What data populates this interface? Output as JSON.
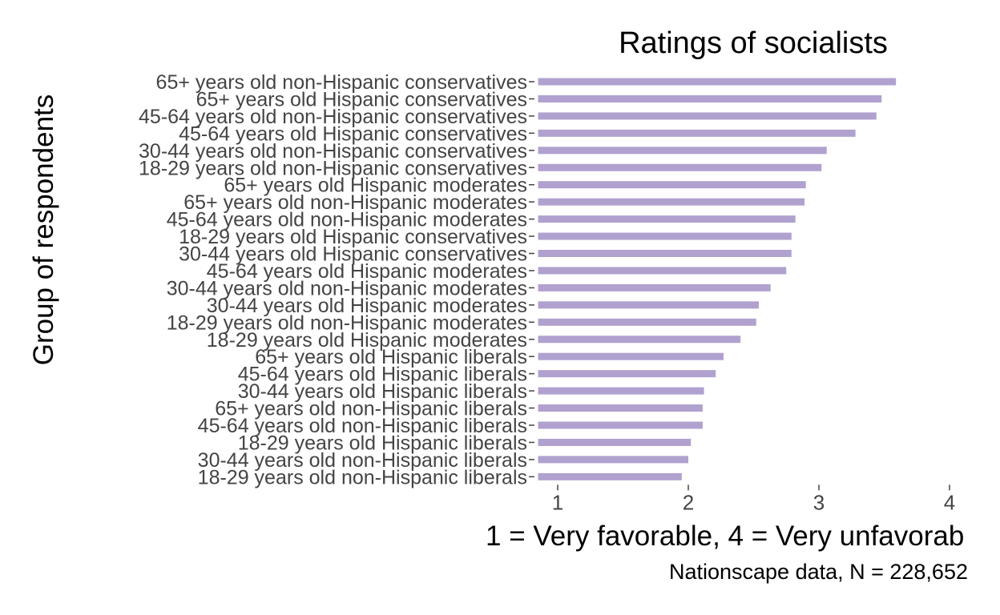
{
  "chart_data": {
    "type": "bar",
    "orientation": "horizontal",
    "title": "Ratings of socialists",
    "xlabel": "1 = Very favorable, 4 = Very unfavorab",
    "ylabel": "Group of respondents",
    "caption": "Nationscape data, N = 228,652",
    "xlim": [
      0.85,
      4.0
    ],
    "xticks": [
      "1",
      "2",
      "3",
      "4"
    ],
    "bar_color": "#b0a1cf",
    "categories": [
      "65+ years old non-Hispanic conservatives",
      "65+ years old Hispanic conservatives",
      "45-64 years old non-Hispanic conservatives",
      "45-64 years old Hispanic conservatives",
      "30-44 years old non-Hispanic conservatives",
      "18-29 years old non-Hispanic conservatives",
      "65+ years old Hispanic moderates",
      "65+ years old non-Hispanic moderates",
      "45-64 years old non-Hispanic moderates",
      "18-29 years old Hispanic conservatives",
      "30-44 years old Hispanic conservatives",
      "45-64 years old Hispanic moderates",
      "30-44 years old non-Hispanic moderates",
      "30-44 years old Hispanic moderates",
      "18-29 years old non-Hispanic moderates",
      "18-29 years old Hispanic moderates",
      "65+ years old Hispanic liberals",
      "45-64 years old Hispanic liberals",
      "30-44 years old Hispanic liberals",
      "65+ years old non-Hispanic liberals",
      "45-64 years old non-Hispanic liberals",
      "18-29 years old Hispanic liberals",
      "30-44 years old non-Hispanic liberals",
      "18-29 years old non-Hispanic liberals"
    ],
    "values": [
      3.59,
      3.48,
      3.44,
      3.28,
      3.06,
      3.02,
      2.9,
      2.89,
      2.82,
      2.79,
      2.79,
      2.75,
      2.63,
      2.54,
      2.52,
      2.4,
      2.27,
      2.21,
      2.12,
      2.11,
      2.11,
      2.02,
      2.0,
      1.95
    ]
  }
}
